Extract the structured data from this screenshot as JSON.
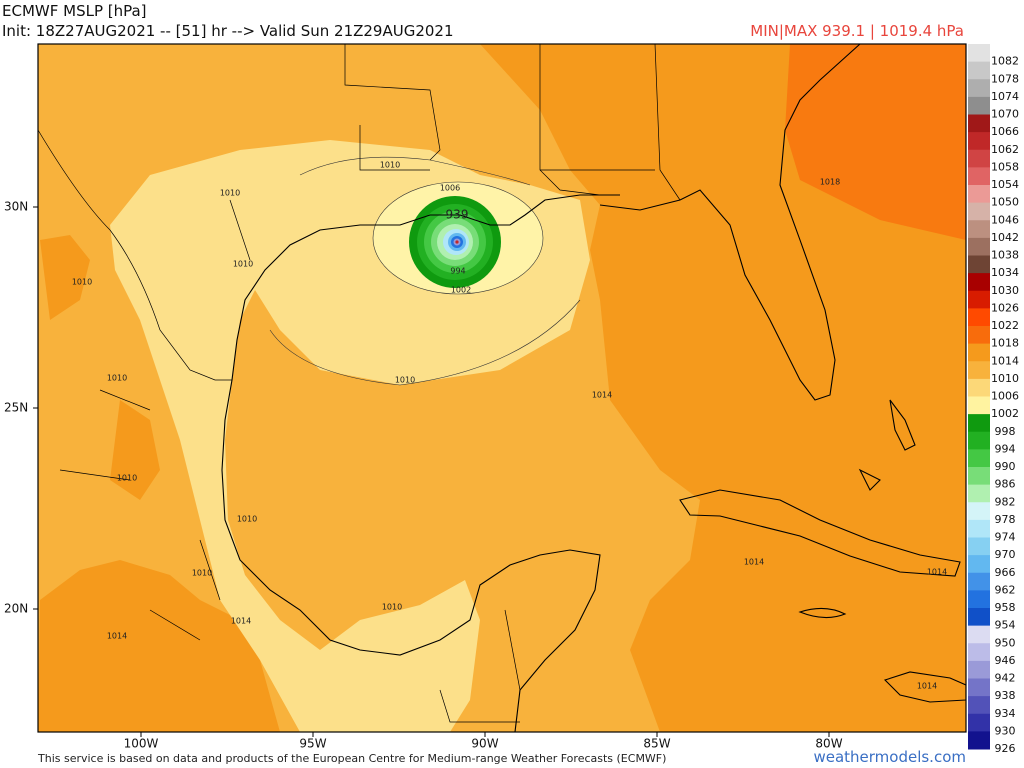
{
  "header": {
    "title": "ECMWF MSLP [hPa]",
    "init": "Init: 18Z27AUG2021 -- [51] hr --> Valid Sun 21Z29AUG2021",
    "minmax": "MIN|MAX 939.1 | 1019.4 hPa"
  },
  "axes": {
    "lat": [
      "30N",
      "25N",
      "20N"
    ],
    "lon": [
      "100W",
      "95W",
      "90W",
      "85W",
      "80W"
    ]
  },
  "contour_labels": [
    "1010",
    "1010",
    "1006",
    "939",
    "994",
    "1002",
    "1010",
    "1010",
    "1010",
    "1010",
    "1014",
    "1018",
    "1010",
    "1010",
    "1010",
    "1010",
    "1014",
    "1014",
    "1014",
    "1014",
    "1014"
  ],
  "colorbar": {
    "labels": [
      1082,
      1078,
      1074,
      1070,
      1066,
      1062,
      1058,
      1054,
      1050,
      1046,
      1042,
      1038,
      1034,
      1030,
      1026,
      1022,
      1018,
      1014,
      1010,
      1006,
      1002,
      998,
      994,
      990,
      986,
      982,
      978,
      974,
      970,
      966,
      962,
      958,
      954,
      950,
      946,
      942,
      938,
      934,
      930,
      926
    ],
    "colors": [
      "#e2e2e2",
      "#c8c8c8",
      "#aeaeae",
      "#8e8e8e",
      "#a01818",
      "#c02828",
      "#d04444",
      "#e06464",
      "#eb9a96",
      "#d6b2a8",
      "#bc9080",
      "#9c7060",
      "#6e4434",
      "#a80000",
      "#d81c00",
      "#ff4a00",
      "#f86c0c",
      "#f59a1c",
      "#f8b23c",
      "#fcd878",
      "#fff3a0",
      "#0f9a0f",
      "#22b022",
      "#44c844",
      "#78dd78",
      "#b0f0b0",
      "#d4f4f8",
      "#b0e6f8",
      "#86d0f2",
      "#62b8f0",
      "#4292e8",
      "#2272e0",
      "#1050c8",
      "#dcdcf2",
      "#bcbce8",
      "#9a9ad8",
      "#7474c8",
      "#5252b8",
      "#3232a8",
      "#12128e"
    ]
  },
  "footer": {
    "credit": "This service is based on data and products of the European Centre for Medium-range Weather Forecasts (ECMWF)",
    "site": "weathermodels.com"
  }
}
